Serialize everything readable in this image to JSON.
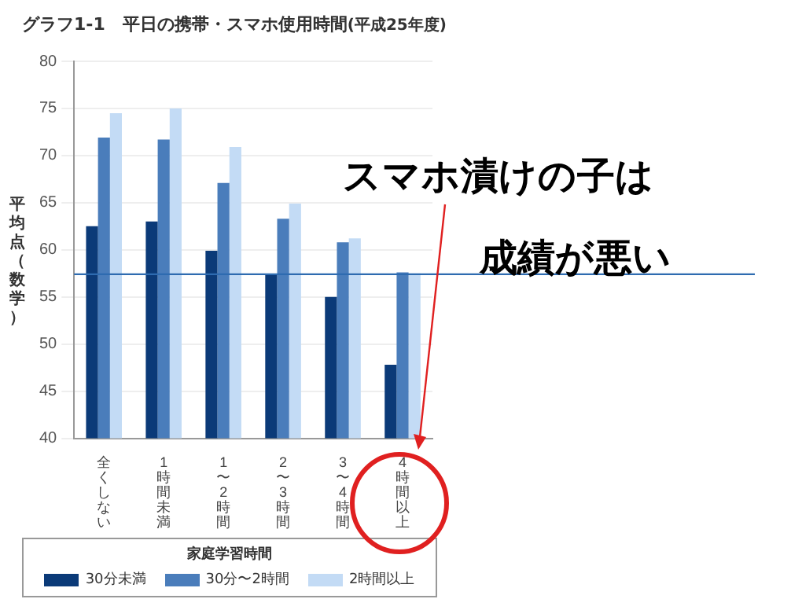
{
  "chart_data": {
    "type": "bar",
    "title": "グラフ1-1　平日の携帯・スマホ使用時間",
    "subtitle": "(平成25年度)",
    "ylabel": "平均点（数学）",
    "legend_title": "家庭学習時間",
    "categories": [
      "全くしない",
      "1時間未満",
      "1〜2時間",
      "2〜3時間",
      "3〜4時間",
      "4時間以上"
    ],
    "series": [
      {
        "name": "30分未満",
        "color": "#0b3a78",
        "values": [
          62.5,
          63.0,
          59.9,
          57.4,
          55.0,
          47.8
        ]
      },
      {
        "name": "30分〜2時間",
        "color": "#4a7dbb",
        "values": [
          71.9,
          71.7,
          67.1,
          63.3,
          60.8,
          57.6
        ]
      },
      {
        "name": "2時間以上",
        "color": "#c3dbf5",
        "values": [
          74.5,
          75.0,
          70.9,
          64.9,
          61.2,
          57.5
        ]
      }
    ],
    "ylim": [
      40,
      80
    ],
    "yticks": [
      40,
      45,
      50,
      55,
      60,
      65,
      70,
      75,
      80
    ],
    "grid": "y",
    "legend": "bottom",
    "ref_lines": [
      {
        "axis": "y",
        "value": 57.4,
        "color": "#2e6bb0"
      }
    ],
    "annotations": [
      "スマホ漬けの子は",
      "成績が悪い"
    ]
  }
}
